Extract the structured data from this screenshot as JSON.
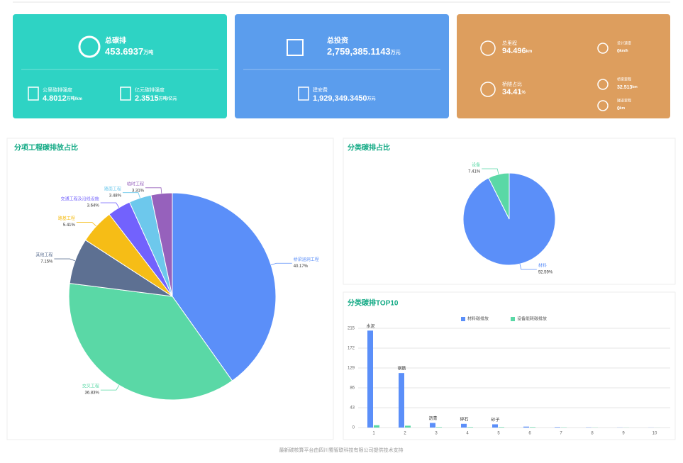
{
  "cards": [
    {
      "title": "总碳排",
      "value": "453.6937",
      "unit": "万吨",
      "subs": [
        {
          "label": "公里碳排强度",
          "value": "4.8012",
          "unit": "万吨/km"
        },
        {
          "label": "亿元碳排强度",
          "value": "2.3515",
          "unit": "万吨/亿元"
        }
      ]
    },
    {
      "title": "总投资",
      "value": "2,759,385.1143",
      "unit": "万元",
      "subs": [
        {
          "label": "建安费",
          "value": "1,929,349.3450",
          "unit": "万元"
        }
      ]
    },
    {
      "title": null,
      "value": null,
      "unit": null,
      "subs": [
        {
          "label": "总里程",
          "value": "94.496",
          "unit": "km"
        },
        {
          "label": "设计速度",
          "value": "0",
          "unit": "km/h"
        },
        {
          "label": "桥隧占比",
          "value": "34.41",
          "unit": "%"
        },
        {
          "label": "桥梁里程",
          "value": "32.513",
          "unit": "km"
        },
        {
          "label": "隧道里程",
          "value": "0",
          "unit": "km"
        }
      ]
    }
  ],
  "chart_data": [
    {
      "type": "pie",
      "title": "分项工程碳排放占比",
      "categories": [
        "桥梁涵洞工程",
        "交叉工程",
        "其他工程",
        "路基工程",
        "交通工程及沿线设施",
        "路面工程",
        "临时工程"
      ],
      "values": [
        40.17,
        36.83,
        7.15,
        5.41,
        3.64,
        3.48,
        3.31
      ],
      "value_labels": [
        "40.17%",
        "36.83%",
        "7.15%",
        "5.41%",
        "3.64%",
        "3.48%",
        "3.31%"
      ],
      "colors": [
        "#5b8ff9",
        "#5ad8a6",
        "#5d7092",
        "#f6bd16",
        "#7262fd",
        "#6dc8ec",
        "#9661bc"
      ]
    },
    {
      "type": "pie",
      "title": "分类碳排占比",
      "categories": [
        "材料",
        "设备"
      ],
      "values": [
        92.59,
        7.41
      ],
      "value_labels": [
        "92.59%",
        "7.41%"
      ],
      "colors": [
        "#5b8ff9",
        "#5ad8a6"
      ]
    },
    {
      "type": "bar",
      "title": "分类碳排TOP10",
      "categories": [
        "1",
        "2",
        "3",
        "4",
        "5",
        "6",
        "7",
        "8",
        "9",
        "10"
      ],
      "bar_labels": [
        "水泥",
        "钢筋",
        "沥青",
        "碎石",
        "砂子",
        null,
        null,
        null,
        null,
        null
      ],
      "series": [
        {
          "name": "材料碳排放",
          "color": "#5b8ff9",
          "values": [
            210,
            118,
            10,
            8,
            7,
            2,
            1,
            0.5,
            0.3,
            0.2
          ]
        },
        {
          "name": "设备能耗碳排放",
          "color": "#5ad8a6",
          "values": [
            5,
            4,
            1,
            1,
            1,
            1,
            0.5,
            0.3,
            0.2,
            0.1
          ]
        }
      ],
      "ylim": [
        0,
        215
      ],
      "yticks": [
        0,
        43,
        86,
        129,
        172,
        215
      ],
      "grid": true
    }
  ],
  "footer": "最新碳核算平台由四川蜀智联科技有限公司提供技术支持"
}
